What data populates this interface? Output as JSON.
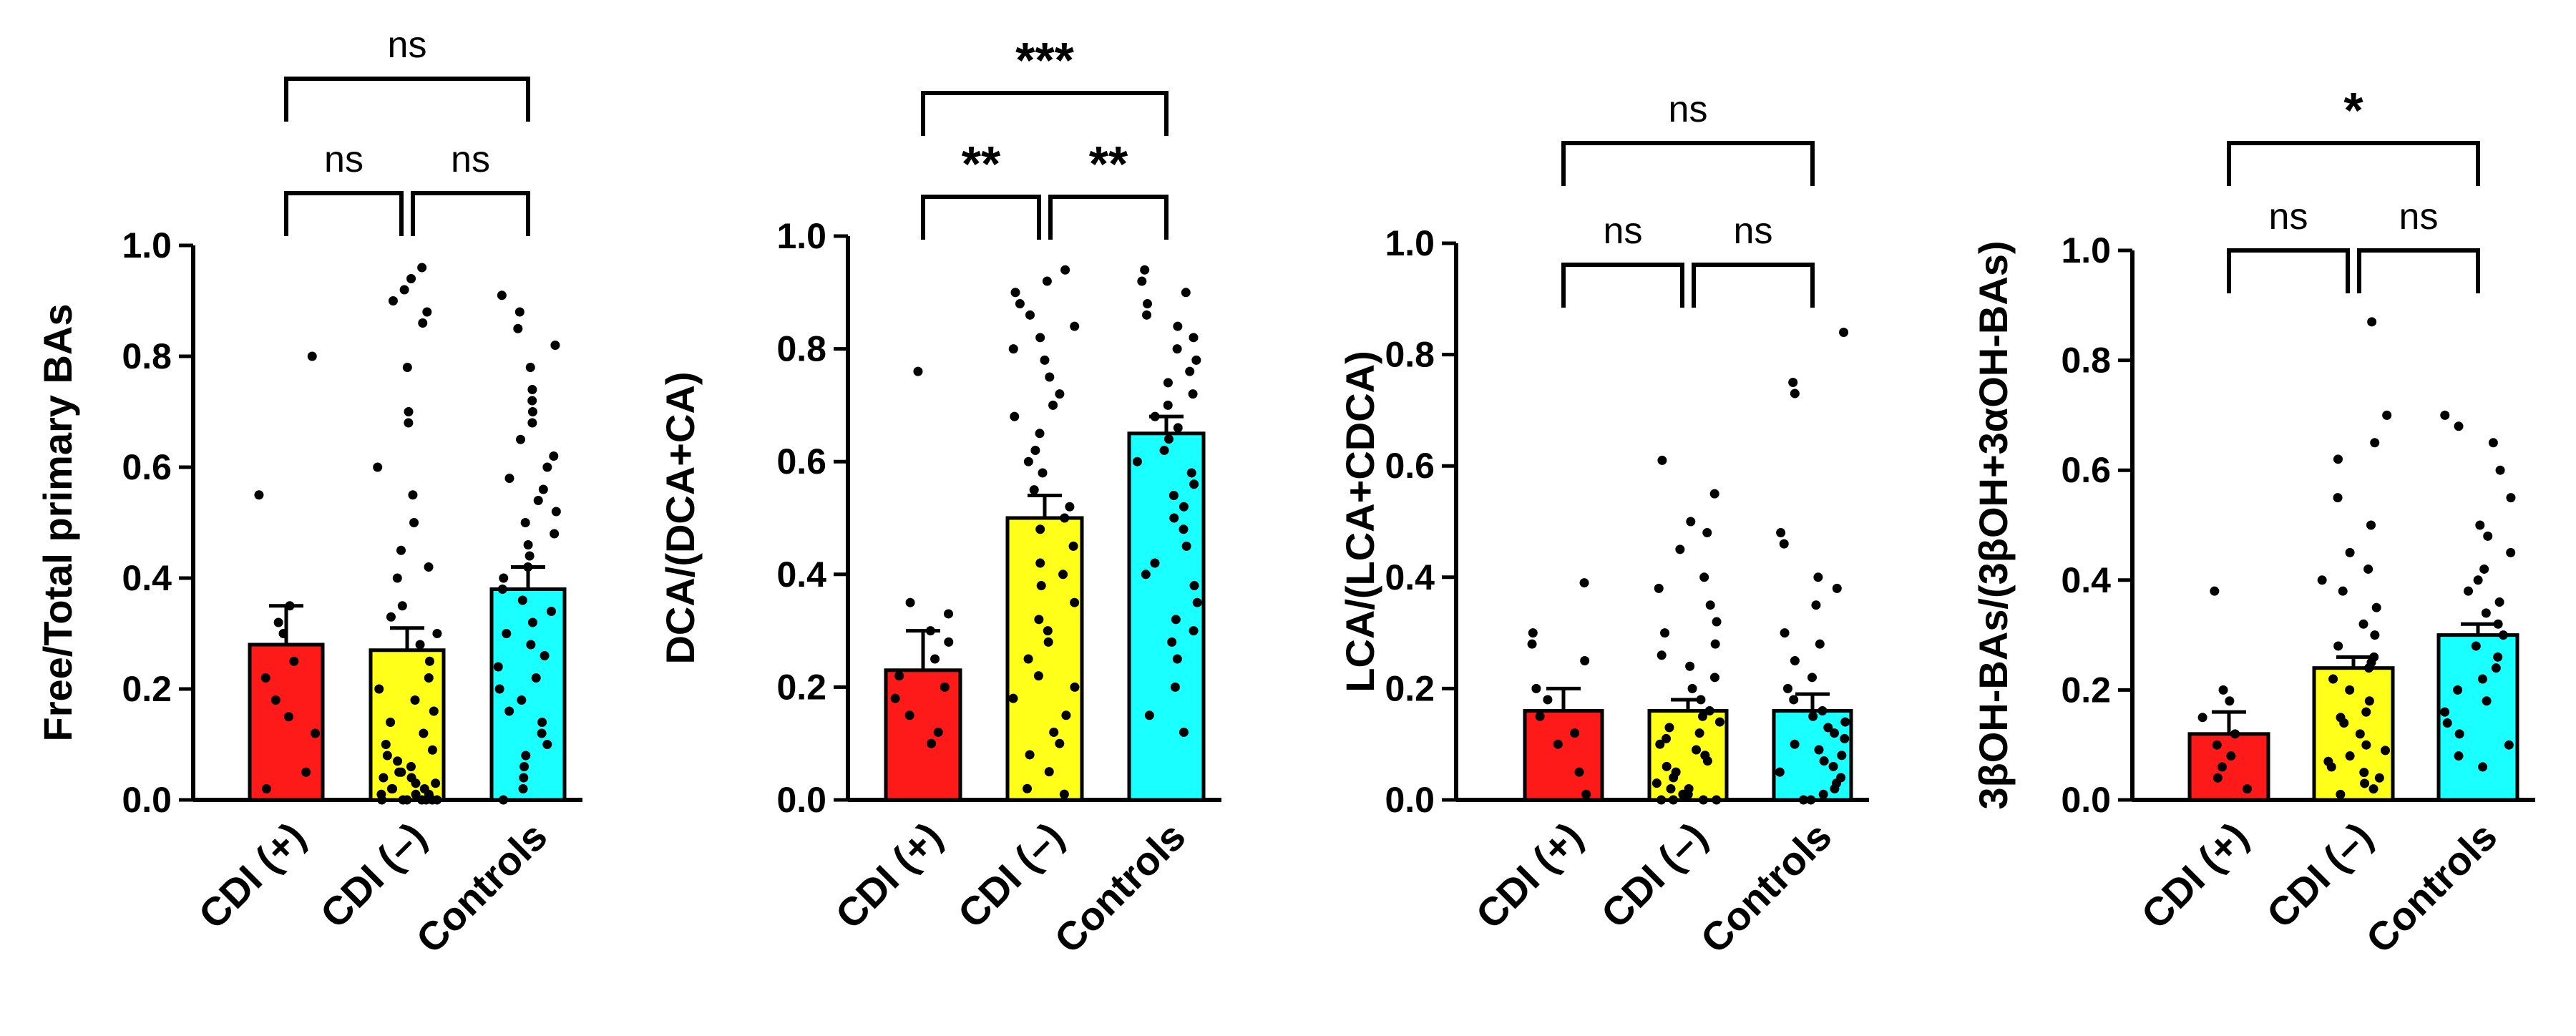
{
  "chart_data": [
    {
      "type": "bar",
      "ylabel": "Free/Total primary BAs",
      "ylim": [
        0,
        1.0
      ],
      "yticks": [
        "0.0",
        "0.2",
        "0.4",
        "0.6",
        "0.8",
        "1.0"
      ],
      "categories": [
        "CDI (+)",
        "CDI (–)",
        "Controls"
      ],
      "colors": [
        "#ff1a1a",
        "#ffff1a",
        "#1affff"
      ],
      "values": [
        0.28,
        0.27,
        0.38
      ],
      "sem": [
        0.07,
        0.04,
        0.04
      ],
      "points": [
        [
          0.8,
          0.55,
          0.35,
          0.32,
          0.3,
          0.25,
          0.22,
          0.18,
          0.15,
          0.12,
          0.05,
          0.02
        ],
        [
          0.96,
          0.94,
          0.92,
          0.9,
          0.88,
          0.86,
          0.78,
          0.7,
          0.68,
          0.6,
          0.55,
          0.5,
          0.45,
          0.42,
          0.4,
          0.35,
          0.33,
          0.3,
          0.28,
          0.25,
          0.22,
          0.2,
          0.18,
          0.16,
          0.14,
          0.12,
          0.1,
          0.09,
          0.08,
          0.07,
          0.06,
          0.05,
          0.05,
          0.04,
          0.04,
          0.03,
          0.03,
          0.02,
          0.02,
          0.02,
          0.01,
          0.01,
          0.01,
          0.0,
          0.0,
          0.0,
          0.0,
          0.0,
          0.0,
          0.0
        ],
        [
          0.91,
          0.88,
          0.85,
          0.82,
          0.78,
          0.74,
          0.72,
          0.7,
          0.68,
          0.65,
          0.62,
          0.6,
          0.58,
          0.56,
          0.54,
          0.52,
          0.5,
          0.48,
          0.46,
          0.44,
          0.42,
          0.4,
          0.38,
          0.36,
          0.34,
          0.32,
          0.3,
          0.28,
          0.26,
          0.24,
          0.22,
          0.2,
          0.18,
          0.16,
          0.14,
          0.12,
          0.1,
          0.08,
          0.06,
          0.04,
          0.02,
          0.0
        ]
      ],
      "comparisons": [
        {
          "from": 0,
          "to": 1,
          "label": "ns",
          "bold": false
        },
        {
          "from": 1,
          "to": 2,
          "label": "ns",
          "bold": false
        },
        {
          "from": 0,
          "to": 2,
          "label": "ns",
          "bold": false
        }
      ]
    },
    {
      "type": "bar",
      "ylabel": "DCA/(DCA+CA)",
      "ylim": [
        0,
        1.0
      ],
      "yticks": [
        "0.0",
        "0.2",
        "0.4",
        "0.6",
        "0.8",
        "1.0"
      ],
      "categories": [
        "CDI (+)",
        "CDI (–)",
        "Controls"
      ],
      "colors": [
        "#ff1a1a",
        "#ffff1a",
        "#1affff"
      ],
      "values": [
        0.23,
        0.5,
        0.65
      ],
      "sem": [
        0.07,
        0.04,
        0.03
      ],
      "points": [
        [
          0.76,
          0.35,
          0.33,
          0.3,
          0.28,
          0.25,
          0.22,
          0.2,
          0.18,
          0.15,
          0.12,
          0.1
        ],
        [
          0.94,
          0.92,
          0.9,
          0.88,
          0.86,
          0.84,
          0.82,
          0.8,
          0.78,
          0.75,
          0.72,
          0.7,
          0.68,
          0.65,
          0.62,
          0.6,
          0.58,
          0.55,
          0.52,
          0.5,
          0.48,
          0.45,
          0.42,
          0.4,
          0.38,
          0.35,
          0.32,
          0.3,
          0.28,
          0.25,
          0.22,
          0.2,
          0.18,
          0.15,
          0.12,
          0.1,
          0.08,
          0.05,
          0.02,
          0.01
        ],
        [
          0.94,
          0.92,
          0.9,
          0.88,
          0.86,
          0.84,
          0.82,
          0.8,
          0.78,
          0.76,
          0.74,
          0.72,
          0.7,
          0.68,
          0.66,
          0.64,
          0.62,
          0.6,
          0.58,
          0.56,
          0.54,
          0.52,
          0.5,
          0.48,
          0.45,
          0.42,
          0.4,
          0.38,
          0.35,
          0.32,
          0.3,
          0.28,
          0.25,
          0.2,
          0.15,
          0.12
        ]
      ],
      "comparisons": [
        {
          "from": 0,
          "to": 1,
          "label": "**",
          "bold": true
        },
        {
          "from": 1,
          "to": 2,
          "label": "**",
          "bold": true
        },
        {
          "from": 0,
          "to": 2,
          "label": "***",
          "bold": true
        }
      ]
    },
    {
      "type": "bar",
      "ylabel": "LCA/(LCA+CDCA)",
      "ylim": [
        0,
        1.0
      ],
      "yticks": [
        "0.0",
        "0.2",
        "0.4",
        "0.6",
        "0.8",
        "1.0"
      ],
      "categories": [
        "CDI (+)",
        "CDI (–)",
        "Controls"
      ],
      "colors": [
        "#ff1a1a",
        "#ffff1a",
        "#1affff"
      ],
      "values": [
        0.16,
        0.16,
        0.16
      ],
      "sem": [
        0.04,
        0.02,
        0.03
      ],
      "points": [
        [
          0.39,
          0.3,
          0.28,
          0.25,
          0.2,
          0.18,
          0.15,
          0.12,
          0.1,
          0.05,
          0.01
        ],
        [
          0.61,
          0.55,
          0.5,
          0.48,
          0.45,
          0.4,
          0.38,
          0.35,
          0.32,
          0.3,
          0.28,
          0.26,
          0.24,
          0.22,
          0.2,
          0.18,
          0.16,
          0.15,
          0.14,
          0.13,
          0.12,
          0.11,
          0.1,
          0.09,
          0.08,
          0.07,
          0.06,
          0.05,
          0.04,
          0.03,
          0.02,
          0.02,
          0.01,
          0.01,
          0.0,
          0.0,
          0.0,
          0.0
        ],
        [
          0.84,
          0.75,
          0.73,
          0.48,
          0.46,
          0.4,
          0.38,
          0.35,
          0.3,
          0.28,
          0.25,
          0.22,
          0.2,
          0.18,
          0.16,
          0.15,
          0.14,
          0.13,
          0.12,
          0.11,
          0.1,
          0.09,
          0.08,
          0.07,
          0.06,
          0.05,
          0.04,
          0.03,
          0.02,
          0.01,
          0.0,
          0.0
        ]
      ],
      "comparisons": [
        {
          "from": 0,
          "to": 1,
          "label": "ns",
          "bold": false
        },
        {
          "from": 1,
          "to": 2,
          "label": "ns",
          "bold": false
        },
        {
          "from": 0,
          "to": 2,
          "label": "ns",
          "bold": false
        }
      ]
    },
    {
      "type": "bar",
      "ylabel": "3βOH-BAs/(3βOH+3αOH-BAs)",
      "ylim": [
        0,
        1.0
      ],
      "yticks": [
        "0.0",
        "0.2",
        "0.4",
        "0.6",
        "0.8",
        "1.0"
      ],
      "categories": [
        "CDI (+)",
        "CDI (–)",
        "Controls"
      ],
      "colors": [
        "#ff1a1a",
        "#ffff1a",
        "#1affff"
      ],
      "values": [
        0.12,
        0.24,
        0.3
      ],
      "sem": [
        0.04,
        0.02,
        0.02
      ],
      "points": [
        [
          0.38,
          0.2,
          0.18,
          0.15,
          0.12,
          0.1,
          0.08,
          0.06,
          0.04,
          0.02
        ],
        [
          0.87,
          0.7,
          0.65,
          0.62,
          0.55,
          0.5,
          0.45,
          0.42,
          0.4,
          0.38,
          0.35,
          0.32,
          0.3,
          0.28,
          0.26,
          0.25,
          0.24,
          0.22,
          0.2,
          0.18,
          0.16,
          0.15,
          0.14,
          0.12,
          0.1,
          0.09,
          0.08,
          0.07,
          0.06,
          0.05,
          0.04,
          0.03,
          0.02,
          0.01
        ],
        [
          0.7,
          0.68,
          0.65,
          0.6,
          0.55,
          0.5,
          0.48,
          0.45,
          0.42,
          0.4,
          0.38,
          0.36,
          0.34,
          0.32,
          0.3,
          0.28,
          0.26,
          0.24,
          0.22,
          0.2,
          0.18,
          0.16,
          0.14,
          0.12,
          0.1,
          0.08,
          0.06
        ]
      ],
      "comparisons": [
        {
          "from": 0,
          "to": 1,
          "label": "ns",
          "bold": false
        },
        {
          "from": 1,
          "to": 2,
          "label": "ns",
          "bold": false
        },
        {
          "from": 0,
          "to": 2,
          "label": "*",
          "bold": true
        }
      ]
    }
  ]
}
